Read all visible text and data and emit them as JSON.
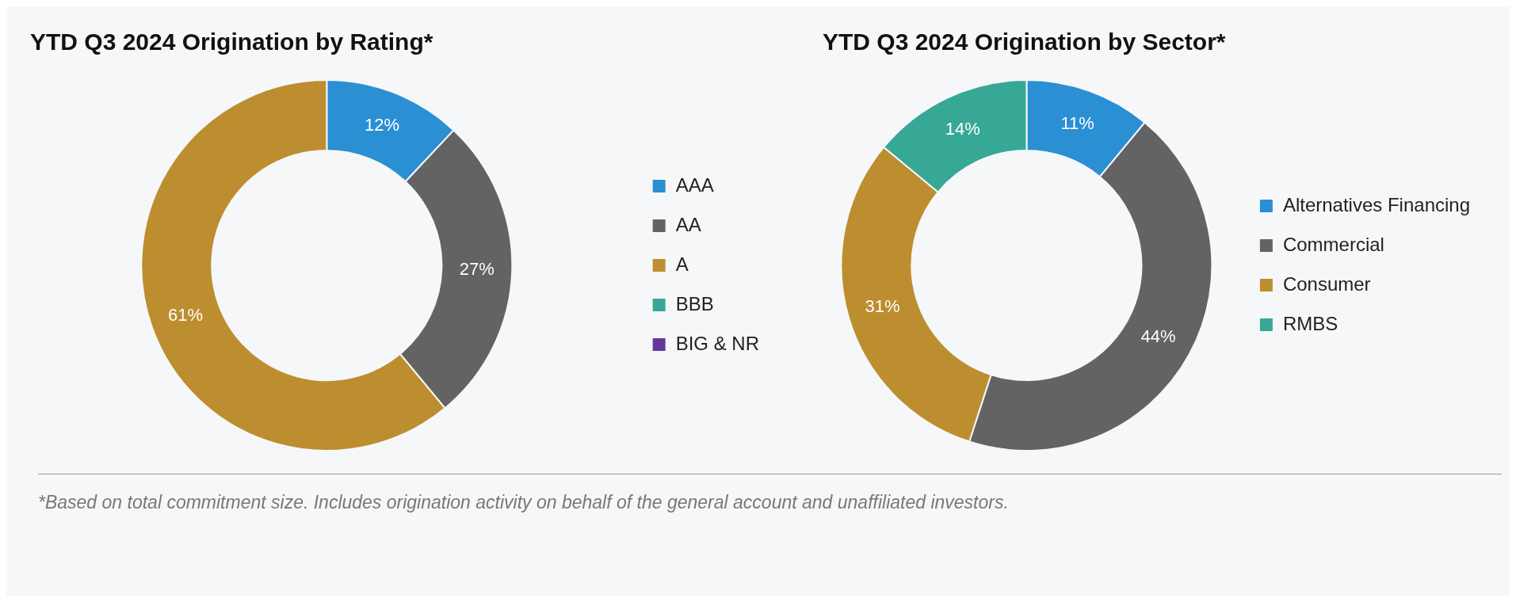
{
  "chart_data": [
    {
      "type": "donut",
      "title": "YTD Q3 2024 Origination by Rating*",
      "categories": [
        "AAA",
        "AA",
        "A",
        "BBB",
        "BIG & NR"
      ],
      "values": [
        12,
        27,
        61,
        0,
        0
      ],
      "colors": [
        "#2a8fd3",
        "#626362",
        "#bd8e2f",
        "#37a796",
        "#65379a"
      ],
      "value_labels": [
        "12%",
        "27%",
        "61%",
        null,
        null
      ],
      "legend": "right",
      "annotations": [
        "*Based on total commitment size. Includes origination activity on behalf of the general account and unaffiliated investors."
      ]
    },
    {
      "type": "donut",
      "title": "YTD Q3 2024 Origination by Sector*",
      "categories": [
        "Alternatives Financing",
        "Commercial",
        "Consumer",
        "RMBS"
      ],
      "values": [
        11,
        44,
        31,
        14
      ],
      "colors": [
        "#2a8fd3",
        "#626362",
        "#bd8e2f",
        "#37a796"
      ],
      "value_labels": [
        "11%",
        "44%",
        "31%",
        "14%"
      ],
      "legend": "right"
    }
  ]
}
